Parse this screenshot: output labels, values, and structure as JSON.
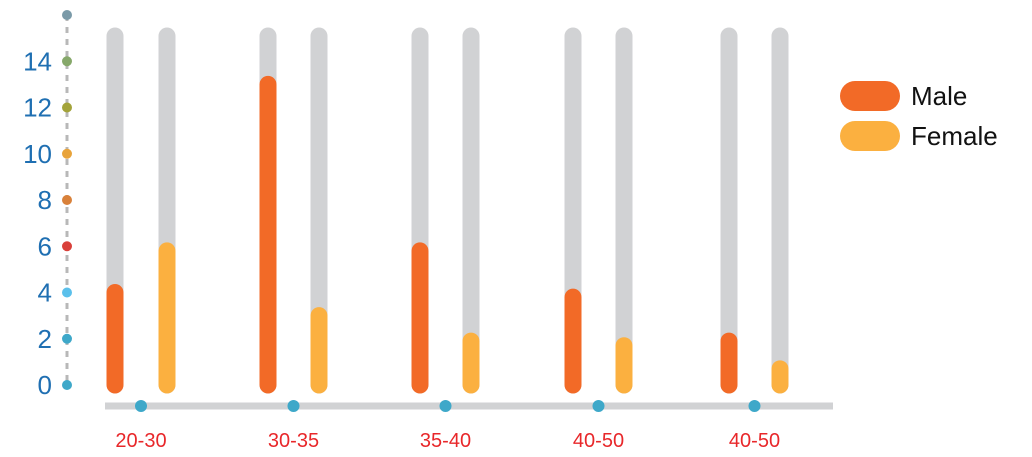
{
  "chart_data": {
    "type": "bar",
    "categories": [
      "20-30",
      "30-35",
      "35-40",
      "40-50",
      "40-50"
    ],
    "series": [
      {
        "name": "Male",
        "values": [
          4,
          13,
          5.8,
          3.8,
          1.9
        ],
        "color": "#f26a27"
      },
      {
        "name": "Female",
        "values": [
          5.8,
          3,
          1.9,
          1.7,
          0.7
        ],
        "color": "#fbb040"
      }
    ],
    "track_color": "#d1d2d4",
    "ylim": [
      0,
      16
    ],
    "yticks": [
      0,
      2,
      4,
      6,
      8,
      10,
      12,
      14
    ],
    "ytick_labels": [
      "0",
      "2",
      "4",
      "6",
      "8",
      "10",
      "12",
      "14"
    ],
    "y_axis_dot_colors": [
      "#3ea8c9",
      "#3ea8c9",
      "#5bc0eb",
      "#d9403a",
      "#d9813a",
      "#e8a33a",
      "#a3a33a",
      "#86a86a",
      "#7a9aa8"
    ],
    "x_axis_dot_color": "#3ea8c9",
    "ytick_color": "#1f6fb2",
    "xtick_color": "#e8272a",
    "grid": false,
    "legend_position": "right",
    "title": "",
    "xlabel": "",
    "ylabel": ""
  }
}
